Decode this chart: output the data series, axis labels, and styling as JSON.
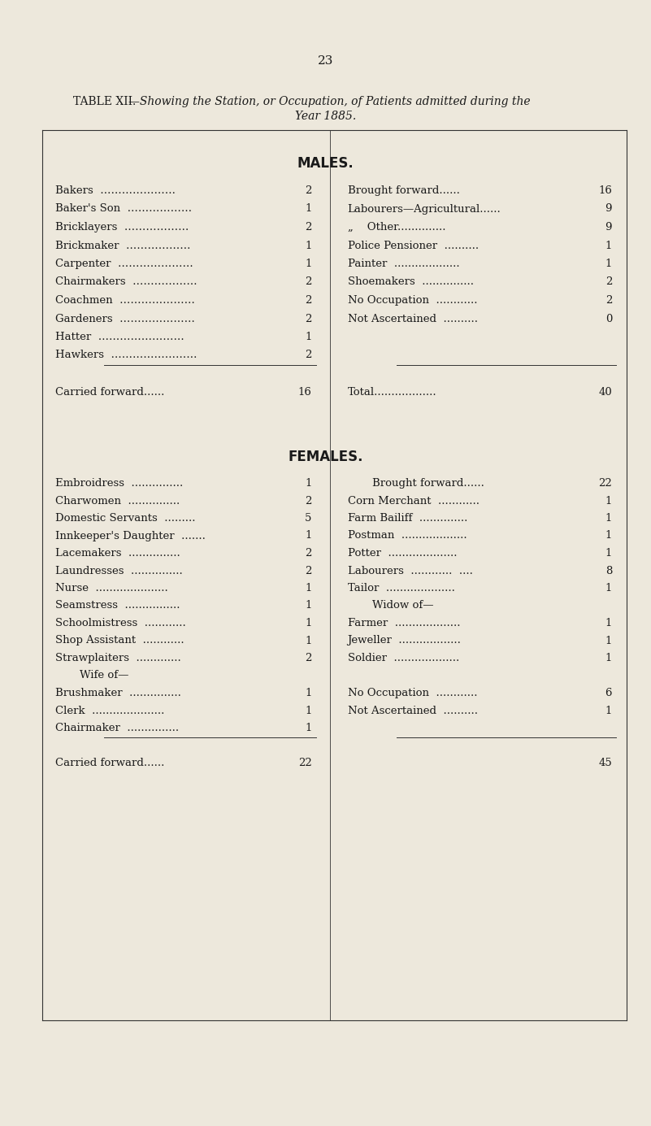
{
  "page_number": "23",
  "title_bold": "TABLE XII.",
  "title_italic": "—Showing the Station, or Occupation, of Patients admitted during the",
  "title_line2": "Year 1885.",
  "bg_color": "#ede8dc",
  "text_color": "#1a1a1a",
  "males_header": "MALES.",
  "males_left_rows": [
    {
      "label": "Bakers  …………………",
      "num": "2"
    },
    {
      "label": "Baker's Son  ………………",
      "num": "1"
    },
    {
      "label": "Bricklayers  ………………",
      "num": "2"
    },
    {
      "label": "Brickmaker  ………………",
      "num": "1"
    },
    {
      "label": "Carpenter  …………………",
      "num": "1"
    },
    {
      "label": "Chairmakers  ………………",
      "num": "2"
    },
    {
      "label": "Coachmen  …………………",
      "num": "2"
    },
    {
      "label": "Gardeners  …………………",
      "num": "2"
    },
    {
      "label": "Hatter  ……………………",
      "num": "1"
    },
    {
      "label": "Hawkers  ……………………",
      "num": "2"
    },
    {
      "label": "",
      "num": ""
    },
    {
      "label": "Carried forward......",
      "num": "16",
      "summary": true
    }
  ],
  "males_right_rows": [
    {
      "label": "Brought forward......",
      "num": "16",
      "summary": true
    },
    {
      "label": "Labourers—Agricultural......",
      "num": "9"
    },
    {
      "label": "„    Other..............",
      "num": "9"
    },
    {
      "label": "Police Pensioner  ..........",
      "num": "1"
    },
    {
      "label": "Painter  ...................",
      "num": "1"
    },
    {
      "label": "Shoemakers  ...............",
      "num": "2"
    },
    {
      "label": "No Occupation  ............",
      "num": "2"
    },
    {
      "label": "Not Ascertained  ..........",
      "num": "0"
    },
    {
      "label": "",
      "num": ""
    },
    {
      "label": "",
      "num": ""
    },
    {
      "label": "",
      "num": ""
    },
    {
      "label": "Total..................",
      "num": "40",
      "summary": true
    }
  ],
  "females_header": "FEMALES.",
  "females_left_rows": [
    {
      "label": "Embroidress  ...............",
      "num": "1"
    },
    {
      "label": "Charwomen  ...............",
      "num": "2"
    },
    {
      "label": "Domestic Servants  .........",
      "num": "5"
    },
    {
      "label": "Innkeeper's Daughter  .......",
      "num": "1"
    },
    {
      "label": "Lacemakers  ...............",
      "num": "2"
    },
    {
      "label": "Laundresses  ...............",
      "num": "2"
    },
    {
      "label": "Nurse  .....................",
      "num": "1"
    },
    {
      "label": "Seamstress  ................",
      "num": "1"
    },
    {
      "label": "Schoolmistress  ............",
      "num": "1"
    },
    {
      "label": "Shop Assistant  ............",
      "num": "1"
    },
    {
      "label": "Strawplaiters  .............",
      "num": "2"
    },
    {
      "label": "    Wife of—",
      "num": "",
      "subhead": true
    },
    {
      "label": "Brushmaker  ...............",
      "num": "1"
    },
    {
      "label": "Clerk  .....................",
      "num": "1"
    },
    {
      "label": "Chairmaker  ...............",
      "num": "1"
    },
    {
      "label": "",
      "num": ""
    },
    {
      "label": "Carried forward......",
      "num": "22",
      "summary": true
    }
  ],
  "females_right_rows": [
    {
      "label": "    Brought forward......",
      "num": "22",
      "summary": true,
      "indent": true
    },
    {
      "label": "Corn Merchant  ............",
      "num": "1"
    },
    {
      "label": "Farm Bailiff  ..............",
      "num": "1"
    },
    {
      "label": "Postman  ...................",
      "num": "1"
    },
    {
      "label": "Potter  ....................",
      "num": "1"
    },
    {
      "label": "Labourers  ............  ....",
      "num": "8"
    },
    {
      "label": "Tailor  ....................",
      "num": "1"
    },
    {
      "label": "    Widow of—",
      "num": "",
      "subhead": true
    },
    {
      "label": "Farmer  ...................",
      "num": "1"
    },
    {
      "label": "Jeweller  ..................",
      "num": "1"
    },
    {
      "label": "Soldier  ...................",
      "num": "1"
    },
    {
      "label": "",
      "num": ""
    },
    {
      "label": "No Occupation  ............",
      "num": "6"
    },
    {
      "label": "Not Ascertained  ..........",
      "num": "1"
    },
    {
      "label": "",
      "num": ""
    },
    {
      "label": "",
      "num": ""
    },
    {
      "label": "",
      "num": "45",
      "summary": true
    }
  ]
}
